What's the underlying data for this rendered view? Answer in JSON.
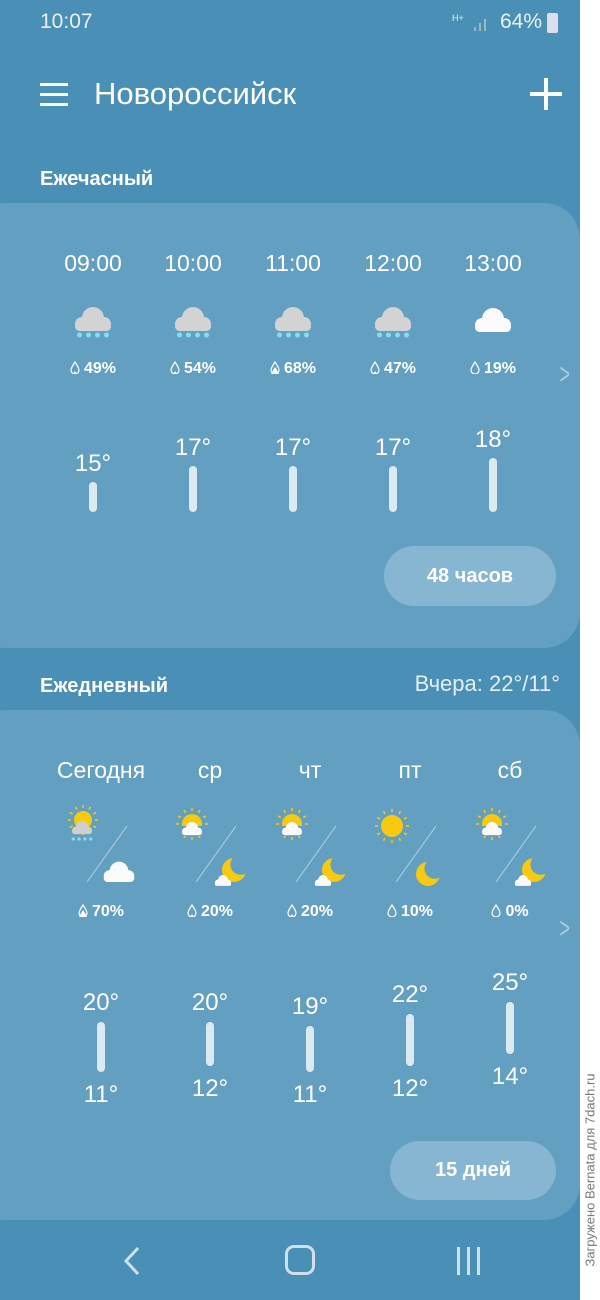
{
  "status_bar": {
    "time": "10:07",
    "network": "H+",
    "battery": "64%"
  },
  "toolbar": {
    "city": "Новороссийск",
    "menu_icon": "menu-icon",
    "add_icon": "plus-icon"
  },
  "hourly": {
    "title": "Ежечасный",
    "button": "48 часов",
    "items": [
      {
        "time": "09:00",
        "icon": "rain",
        "precip": "49%",
        "temp": "15°",
        "t": 15
      },
      {
        "time": "10:00",
        "icon": "rain",
        "precip": "54%",
        "temp": "17°",
        "t": 17
      },
      {
        "time": "11:00",
        "icon": "rain",
        "precip": "68%",
        "temp": "17°",
        "t": 17
      },
      {
        "time": "12:00",
        "icon": "rain",
        "precip": "47%",
        "temp": "17°",
        "t": 17
      },
      {
        "time": "13:00",
        "icon": "cloud",
        "precip": "19%",
        "temp": "18°",
        "t": 18
      }
    ]
  },
  "daily": {
    "title": "Ежедневный",
    "yesterday": "Вчера: 22°/11°",
    "button": "15 дней",
    "items": [
      {
        "day": "Сегодня",
        "day_icon": "sun-cloud-rain",
        "night_icon": "cloud",
        "precip": "70%",
        "high": "20°",
        "low": "11°",
        "h": 20,
        "l": 11
      },
      {
        "day": "ср",
        "day_icon": "sun-cloud",
        "night_icon": "moon-cloud",
        "precip": "20%",
        "high": "20°",
        "low": "12°",
        "h": 20,
        "l": 12
      },
      {
        "day": "чт",
        "day_icon": "sun-cloud",
        "night_icon": "moon-cloud",
        "precip": "20%",
        "high": "19°",
        "low": "11°",
        "h": 19,
        "l": 11
      },
      {
        "day": "пт",
        "day_icon": "sun",
        "night_icon": "moon",
        "precip": "10%",
        "high": "22°",
        "low": "12°",
        "h": 22,
        "l": 12
      },
      {
        "day": "сб",
        "day_icon": "sun-cloud",
        "night_icon": "moon-cloud",
        "precip": "0%",
        "high": "25°",
        "low": "14°",
        "h": 25,
        "l": 14
      }
    ]
  },
  "watermark": "Загружено Bernata для 7dach.ru",
  "colors": {
    "background": "#4a8fb5",
    "card": "#639fc1",
    "button": "#86b6d1",
    "sun": "#f7c90f",
    "rain_drop": "#7fe0f0"
  }
}
